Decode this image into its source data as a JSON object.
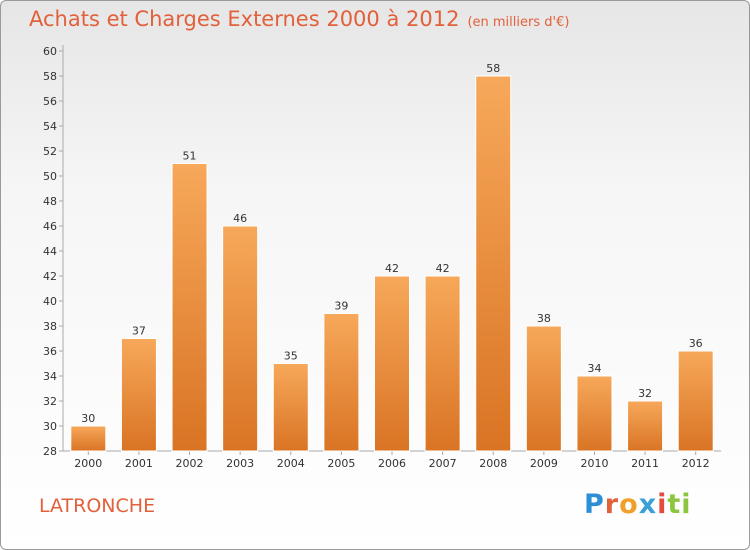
{
  "title": "Achats et Charges Externes 2000 à 2012",
  "subtitle": "(en milliers d'€)",
  "commune": "LATRONCHE",
  "logo": [
    "P",
    "r",
    "o",
    "x",
    "i",
    "ti"
  ],
  "colors": {
    "bar_top": "#f7a85a",
    "bar_bottom": "#d97424",
    "title": "#e2603a"
  },
  "chart_data": {
    "type": "bar",
    "categories": [
      "2000",
      "2001",
      "2002",
      "2003",
      "2004",
      "2005",
      "2006",
      "2007",
      "2008",
      "2009",
      "2010",
      "2011",
      "2012"
    ],
    "values": [
      30,
      37,
      51,
      46,
      35,
      39,
      42,
      42,
      58,
      38,
      34,
      32,
      36
    ],
    "ylim": [
      28,
      60
    ],
    "yticks": [
      28,
      30,
      32,
      34,
      36,
      38,
      40,
      42,
      44,
      46,
      48,
      50,
      52,
      54,
      56,
      58,
      60
    ],
    "grid": false,
    "xlabel": "",
    "ylabel": ""
  }
}
